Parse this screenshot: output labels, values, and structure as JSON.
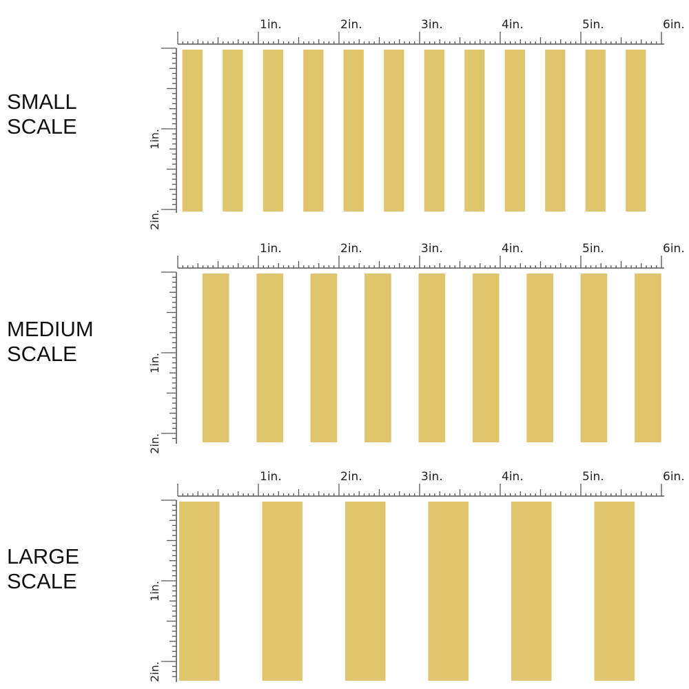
{
  "colors": {
    "stripe": "#e0c56f",
    "stripe_fade": "#efdca6",
    "ruler": "#555555",
    "background": "#ffffff"
  },
  "ruler_labels": {
    "horizontal": [
      "1in.",
      "2in.",
      "3in.",
      "4in.",
      "5in.",
      "6in."
    ],
    "vertical": [
      "1in.",
      "2in."
    ]
  },
  "panels": [
    {
      "id": "small",
      "line1": "SMALL",
      "line2": "SCALE",
      "stripe_width_in": 0.25,
      "repeat_in": 0.5
    },
    {
      "id": "medium",
      "line1": "MEDIUM",
      "line2": "SCALE",
      "stripe_width_in": 0.33,
      "repeat_in": 0.67
    },
    {
      "id": "large",
      "line1": "LARGE",
      "line2": "SCALE",
      "stripe_width_in": 0.5,
      "repeat_in": 1.03
    }
  ]
}
